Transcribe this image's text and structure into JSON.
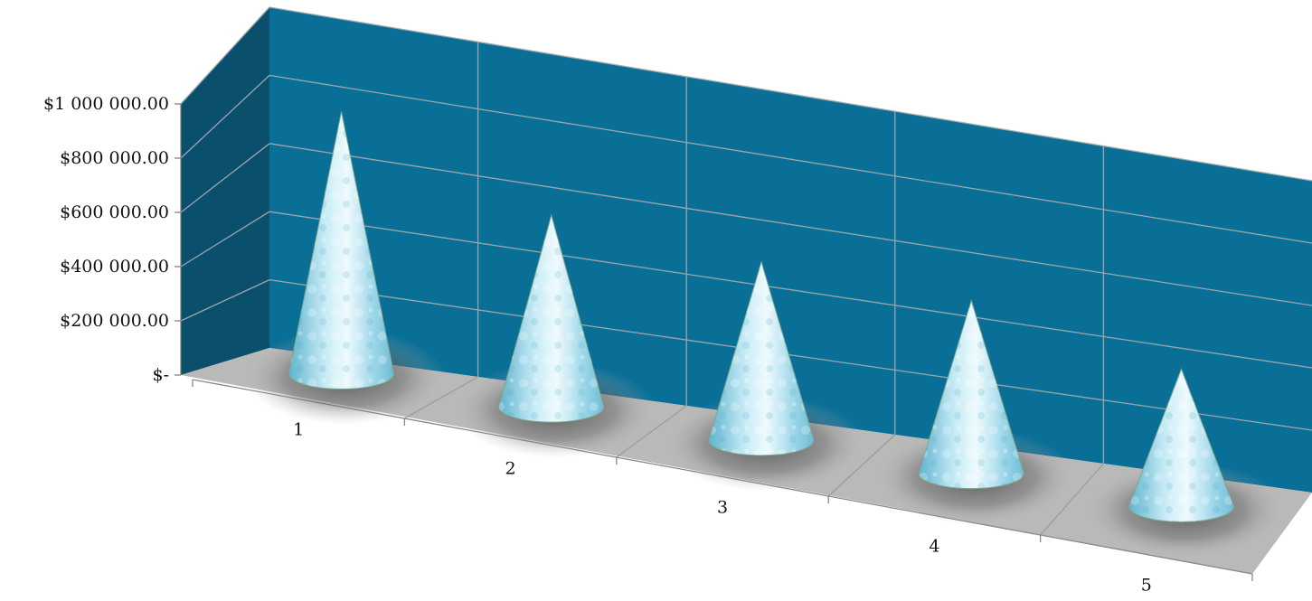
{
  "chart_data": {
    "type": "bar",
    "style": "3d-cone",
    "categories": [
      "1",
      "2",
      "3",
      "4",
      "5"
    ],
    "values": [
      1000000,
      740000,
      690000,
      670000,
      540000
    ],
    "y_tick_labels": [
      "$-",
      "$200 000.00",
      "$400 000.00",
      "$600 000.00",
      "$800 000.00",
      "$1 000 000.00"
    ],
    "y_tick_values": [
      0,
      200000,
      400000,
      600000,
      800000,
      1000000
    ],
    "ylim": [
      0,
      1000000
    ],
    "grid": true,
    "legend": "none",
    "colors": {
      "back_wall": "#0a6f97",
      "side_wall": "#0a4f6c",
      "floor": "#b8b8b8",
      "cone_light": "#dff4fb",
      "cone_mid": "#9fd8ea",
      "cone_dark": "#5fb4cf",
      "grid": "#9aa7ad"
    }
  }
}
